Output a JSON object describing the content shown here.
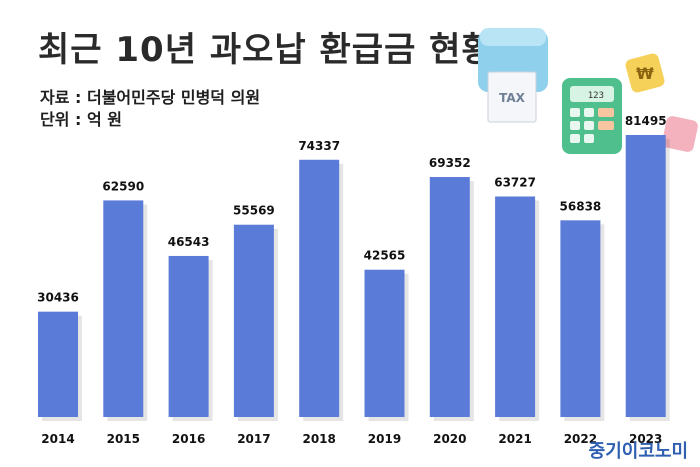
{
  "header": {
    "title": "최근 10년 과오납 환급금 현황",
    "source": "자료 : 더불어민주당 민병덕 의원",
    "unit": "단위 : 억 원"
  },
  "decoration": {
    "tax_label": "TAX",
    "calculator_display": "123",
    "won_symbol": "₩"
  },
  "watermark": "중기이코노미",
  "colors": {
    "bar": "#5b7bd8",
    "text": "#111111",
    "watermark": "#2f5fb0"
  },
  "chart_data": {
    "type": "bar",
    "title": "최근 10년 과오납 환급금 현황",
    "xlabel": "",
    "ylabel": "",
    "categories": [
      "2014",
      "2015",
      "2016",
      "2017",
      "2018",
      "2019",
      "2020",
      "2021",
      "2022",
      "2023"
    ],
    "values": [
      30436,
      62590,
      46543,
      55569,
      74337,
      42565,
      69352,
      63727,
      56838,
      81495
    ],
    "ylim": [
      0,
      81495
    ],
    "grid": false,
    "legend": "none"
  }
}
